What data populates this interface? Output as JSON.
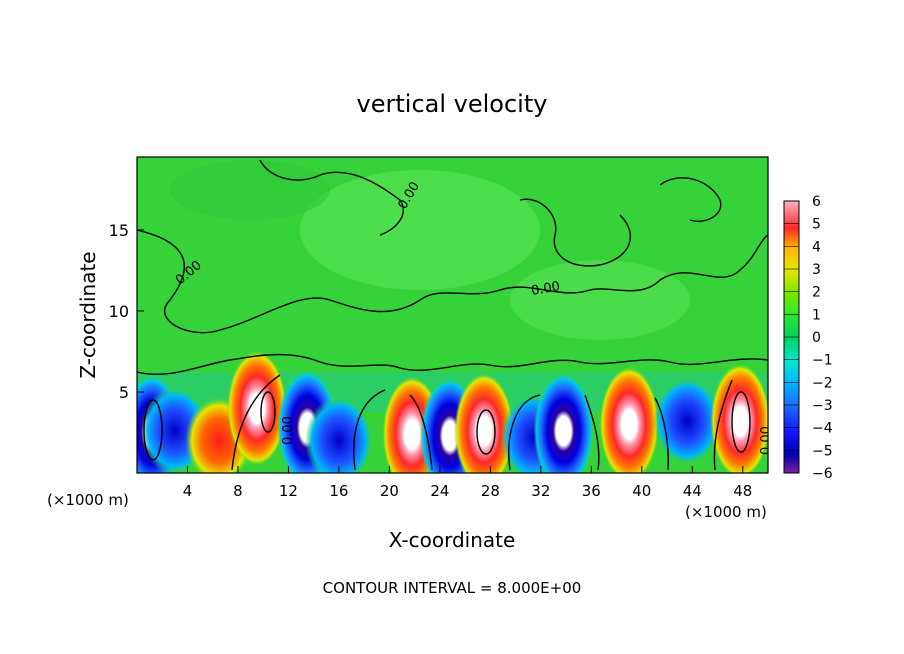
{
  "chart_data": {
    "type": "heatmap",
    "title": "vertical velocity",
    "xlabel": "X-coordinate",
    "ylabel": "Z-coordinate",
    "x_unit_left": "(×1000 m)",
    "x_unit_right": "(×1000 m)",
    "x_ticks": [
      "4",
      "8",
      "12",
      "16",
      "20",
      "24",
      "28",
      "32",
      "36",
      "40",
      "44",
      "48"
    ],
    "y_ticks": [
      "5",
      "10",
      "15"
    ],
    "xlim": [
      0,
      50
    ],
    "ylim": [
      0,
      19.5
    ],
    "colorbar": {
      "ticks": [
        "6",
        "5",
        "4",
        "3",
        "2",
        "1",
        "0",
        "−1",
        "−2",
        "−3",
        "−4",
        "−5",
        "−6"
      ],
      "range": [
        -6,
        6
      ],
      "colors": [
        "#7a1fa0",
        "#0000b0",
        "#1414ff",
        "#1e6cff",
        "#00b4ff",
        "#00e6d2",
        "#00d25a",
        "#2ee62e",
        "#7ce600",
        "#e6e600",
        "#ffb400",
        "#ff6400",
        "#ff2828",
        "#ff6e8c",
        "#ffb4c8"
      ]
    },
    "contour_labels": [
      "0.00",
      "0.00",
      "0.00",
      "0.00",
      "0.00"
    ],
    "footer": "CONTOUR INTERVAL = 8.000E+00",
    "cells": [
      {
        "x": 1.2,
        "z": 2.5,
        "w": -6
      },
      {
        "x": 3.0,
        "z": 2.6,
        "w": -4
      },
      {
        "x": 6.5,
        "z": 2.0,
        "w": 4
      },
      {
        "x": 9.5,
        "z": 4.0,
        "w": 6
      },
      {
        "x": 13.5,
        "z": 2.8,
        "w": -6
      },
      {
        "x": 16.0,
        "z": 2.0,
        "w": -3
      },
      {
        "x": 21.8,
        "z": 2.4,
        "w": 6
      },
      {
        "x": 24.8,
        "z": 2.3,
        "w": -5
      },
      {
        "x": 27.5,
        "z": 2.6,
        "w": 6
      },
      {
        "x": 31.5,
        "z": 2.2,
        "w": -3
      },
      {
        "x": 33.8,
        "z": 2.6,
        "w": -5
      },
      {
        "x": 39.0,
        "z": 3.0,
        "w": 6
      },
      {
        "x": 43.6,
        "z": 3.2,
        "w": -4
      },
      {
        "x": 47.8,
        "z": 3.2,
        "w": 6
      }
    ]
  }
}
